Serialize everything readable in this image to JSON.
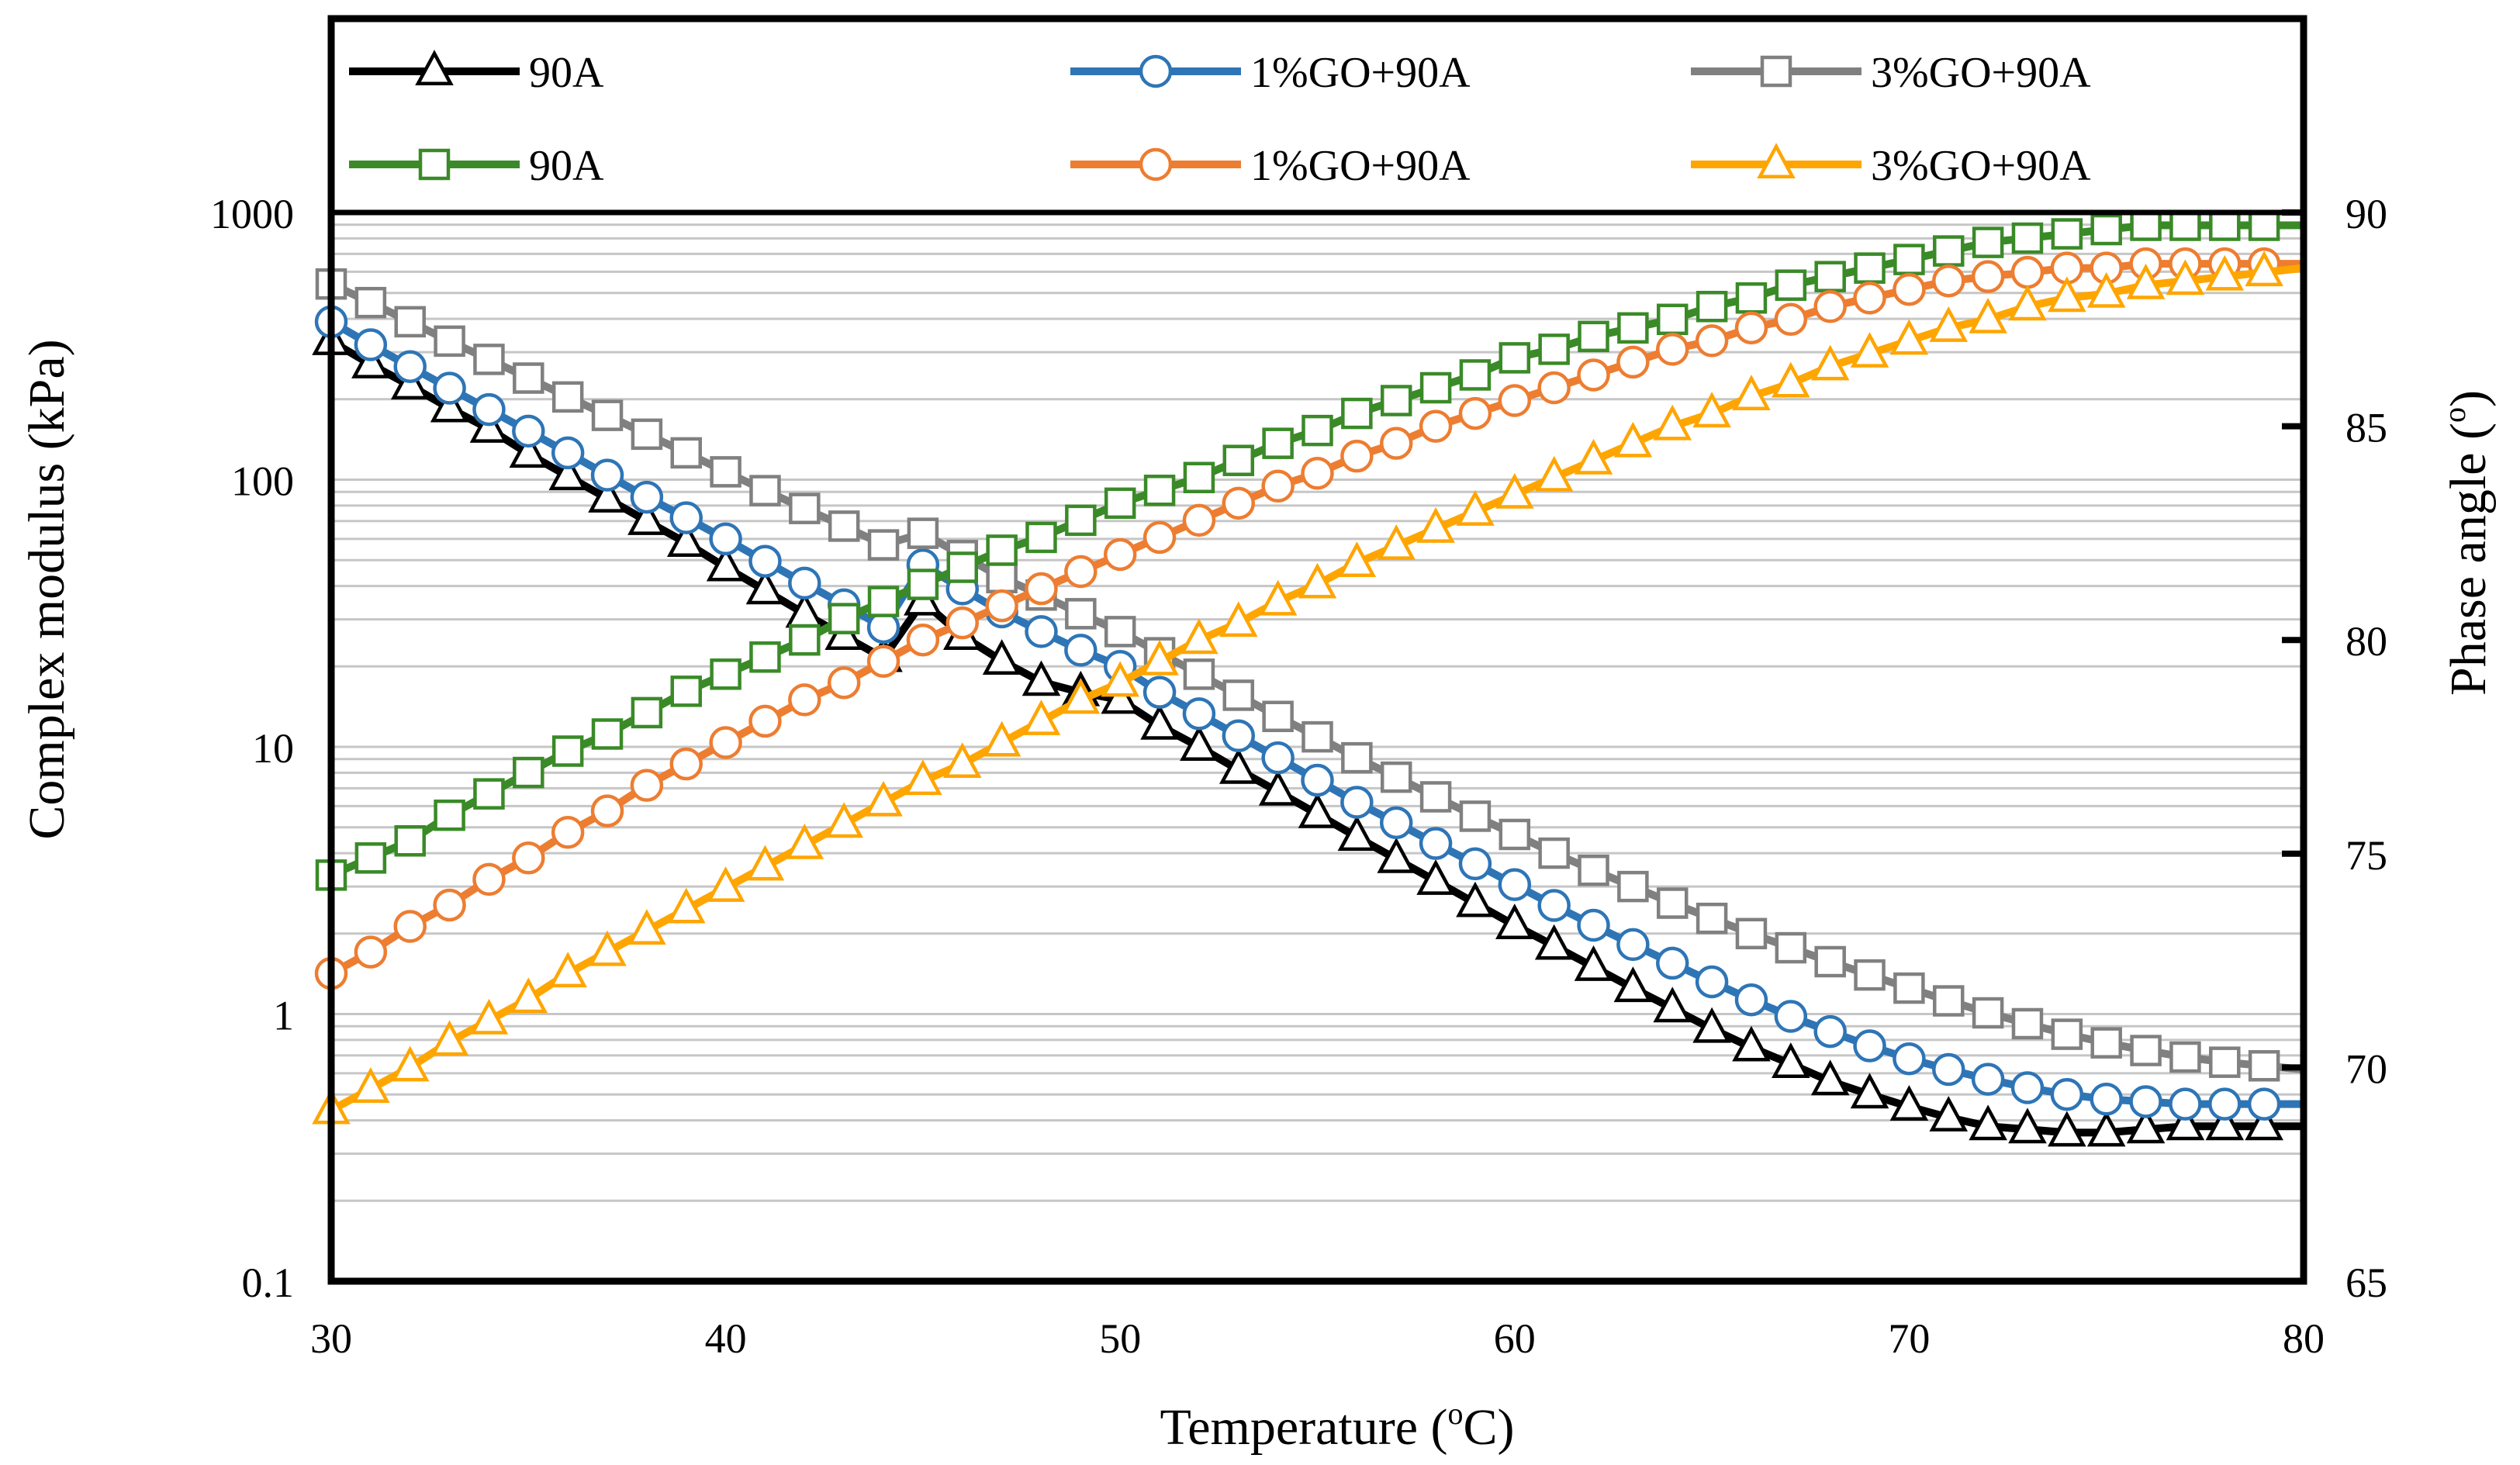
{
  "chart_data": {
    "type": "line",
    "xlabel_main": "Temperature (",
    "xlabel_sup": "o",
    "xlabel_end": "C)",
    "ylabel_left": "Complex modulus (kPa)",
    "ylabel_right_main": "Phase angle (",
    "ylabel_right_sup": "o",
    "ylabel_right_end": ")",
    "xlim": [
      30,
      80
    ],
    "x_ticks": [
      30,
      40,
      50,
      60,
      70,
      80
    ],
    "y_left_scale": "log",
    "y_left_lim": [
      0.1,
      1000
    ],
    "y_left_ticks": [
      "0.1",
      "1",
      "10",
      "100",
      "1000"
    ],
    "y_right_lim": [
      65,
      90
    ],
    "y_right_ticks": [
      65,
      70,
      75,
      80,
      85,
      90
    ],
    "grid": "horizontal minor log gridlines",
    "legend_position": "top, inside frame",
    "x": [
      30,
      31,
      32,
      33,
      34,
      35,
      36,
      37,
      38,
      39,
      40,
      41,
      42,
      43,
      44,
      45,
      46,
      47,
      48,
      49,
      50,
      51,
      52,
      53,
      54,
      55,
      56,
      57,
      58,
      59,
      60,
      61,
      62,
      63,
      64,
      65,
      66,
      67,
      68,
      69,
      70,
      71,
      72,
      73,
      74,
      75,
      76,
      77,
      78,
      79,
      80
    ],
    "series": [
      {
        "name": "90A",
        "axis": "left",
        "color": "#000000",
        "marker": "triangle",
        "values": [
          330,
          270,
          225,
          185,
          155,
          125,
          103,
          85,
          70,
          58,
          47,
          38.5,
          31.5,
          26,
          21.5,
          35,
          26,
          21,
          17.5,
          16,
          15,
          12,
          10,
          8.2,
          6.8,
          5.6,
          4.6,
          3.8,
          3.15,
          2.6,
          2.15,
          1.8,
          1.5,
          1.25,
          1.05,
          0.88,
          0.75,
          0.65,
          0.56,
          0.5,
          0.45,
          0.41,
          0.38,
          0.37,
          0.36,
          0.36,
          0.37,
          0.38,
          0.38,
          0.38,
          0.38
        ]
      },
      {
        "name": "1%GO+90A",
        "axis": "left",
        "color": "#2e75b6",
        "marker": "circle",
        "values": [
          390,
          320,
          265,
          220,
          183,
          152,
          126,
          104,
          86,
          72,
          60,
          49.5,
          41,
          34,
          28,
          48,
          39,
          32,
          27,
          23,
          20,
          16,
          13.3,
          11,
          9.1,
          7.5,
          6.2,
          5.2,
          4.35,
          3.65,
          3.05,
          2.55,
          2.15,
          1.82,
          1.55,
          1.32,
          1.13,
          0.98,
          0.86,
          0.76,
          0.68,
          0.62,
          0.57,
          0.53,
          0.5,
          0.48,
          0.47,
          0.46,
          0.46,
          0.46,
          0.46
        ]
      },
      {
        "name": "3%GO+90A",
        "axis": "left",
        "color": "#808080",
        "marker": "square",
        "values": [
          540,
          460,
          390,
          330,
          282,
          240,
          204,
          174,
          148,
          126,
          107,
          91,
          78,
          67,
          57,
          63,
          52,
          43,
          37,
          31.5,
          27,
          22.5,
          18.7,
          15.6,
          13,
          10.9,
          9.1,
          7.7,
          6.5,
          5.5,
          4.7,
          4,
          3.45,
          3,
          2.6,
          2.28,
          2.0,
          1.77,
          1.57,
          1.4,
          1.25,
          1.12,
          1.01,
          0.92,
          0.84,
          0.78,
          0.73,
          0.69,
          0.66,
          0.64,
          0.62
        ]
      },
      {
        "name": "90A",
        "axis": "right",
        "color": "#3a8a28",
        "marker": "square",
        "values": [
          74.5,
          74.9,
          75.3,
          75.9,
          76.4,
          76.9,
          77.4,
          77.8,
          78.3,
          78.8,
          79.2,
          79.6,
          80.0,
          80.5,
          80.9,
          81.3,
          81.7,
          82.1,
          82.4,
          82.8,
          83.2,
          83.5,
          83.8,
          84.2,
          84.6,
          84.9,
          85.3,
          85.6,
          85.9,
          86.2,
          86.6,
          86.8,
          87.1,
          87.3,
          87.5,
          87.8,
          88.0,
          88.3,
          88.5,
          88.7,
          88.9,
          89.1,
          89.3,
          89.4,
          89.5,
          89.6,
          89.7,
          89.7,
          89.7,
          89.7,
          89.7
        ]
      },
      {
        "name": "1%GO+90A",
        "axis": "right",
        "color": "#ed7d31",
        "marker": "circle",
        "values": [
          72.2,
          72.7,
          73.3,
          73.8,
          74.4,
          74.9,
          75.5,
          76.0,
          76.6,
          77.1,
          77.6,
          78.1,
          78.6,
          79.0,
          79.5,
          80.0,
          80.4,
          80.8,
          81.2,
          81.6,
          82.0,
          82.4,
          82.8,
          83.2,
          83.6,
          83.9,
          84.3,
          84.6,
          85.0,
          85.3,
          85.6,
          85.9,
          86.2,
          86.5,
          86.8,
          87.0,
          87.3,
          87.5,
          87.8,
          88.0,
          88.2,
          88.4,
          88.5,
          88.6,
          88.7,
          88.7,
          88.8,
          88.8,
          88.8,
          88.8,
          88.8
        ]
      },
      {
        "name": "3%GO+90A",
        "axis": "right",
        "color": "#ffa500",
        "marker": "triangle",
        "values": [
          69.0,
          69.5,
          70.0,
          70.6,
          71.1,
          71.6,
          72.2,
          72.7,
          73.2,
          73.7,
          74.2,
          74.7,
          75.2,
          75.7,
          76.2,
          76.7,
          77.1,
          77.6,
          78.1,
          78.6,
          79.0,
          79.5,
          80.0,
          80.4,
          80.9,
          81.3,
          81.8,
          82.2,
          82.6,
          83.0,
          83.4,
          83.8,
          84.2,
          84.6,
          85.0,
          85.3,
          85.7,
          86.0,
          86.4,
          86.7,
          87.0,
          87.3,
          87.5,
          87.8,
          88.0,
          88.1,
          88.3,
          88.4,
          88.5,
          88.6,
          88.7
        ]
      }
    ]
  }
}
